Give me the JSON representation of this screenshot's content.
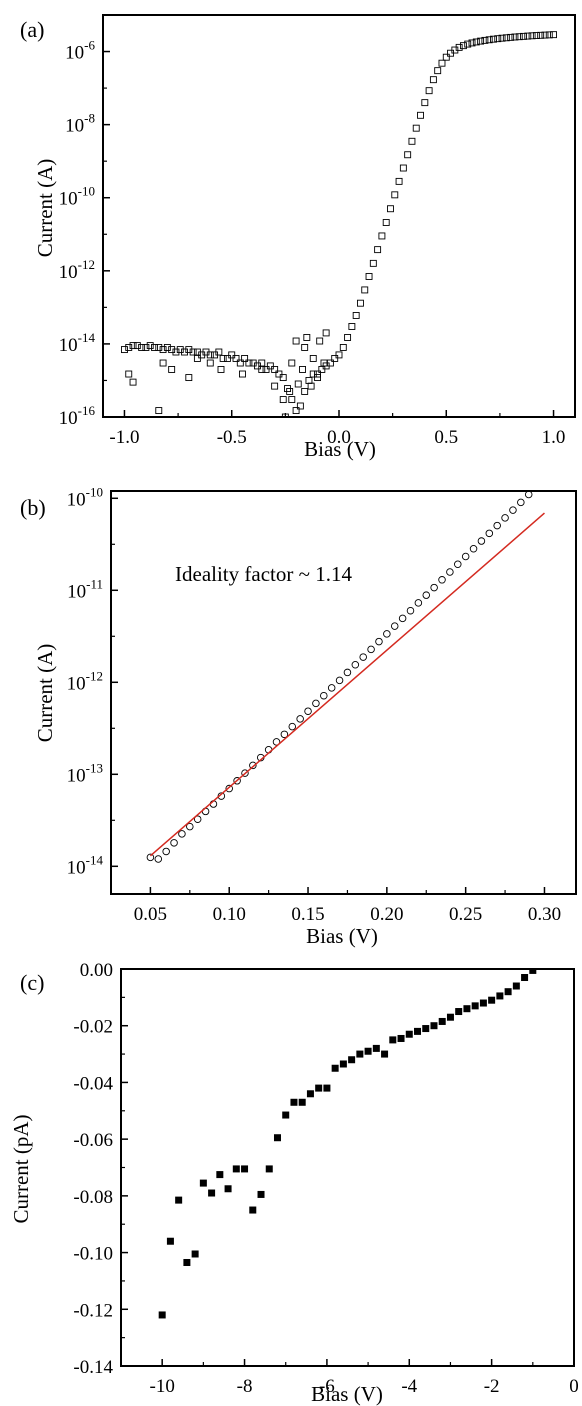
{
  "figure": {
    "colors": {
      "axis": "#000000",
      "marker": "#000000",
      "fit_line": "#d42a20",
      "background": "#ffffff"
    }
  },
  "chart_data": [
    {
      "panel": "(a)",
      "type": "scatter",
      "marker": "open-square",
      "xlabel": "Bias (V)",
      "ylabel": "Current (A)",
      "xlim": [
        -1.1,
        1.1
      ],
      "ylim": [
        1e-16,
        1e-05
      ],
      "yscale": "log",
      "xticks": [
        -1.0,
        -0.5,
        0.0,
        0.5,
        1.0
      ],
      "xtick_labels": [
        "-1.0",
        "-0.5",
        "0.0",
        "0.5",
        "1.0"
      ],
      "yticks": [
        1e-16,
        1e-14,
        1e-12,
        1e-10,
        1e-08,
        1e-06
      ],
      "ytick_labels": [
        {
          "base": "10",
          "exp": "-16"
        },
        {
          "base": "10",
          "exp": "-14"
        },
        {
          "base": "10",
          "exp": "-12"
        },
        {
          "base": "10",
          "exp": "-10"
        },
        {
          "base": "10",
          "exp": "-8"
        },
        {
          "base": "10",
          "exp": "-6"
        }
      ],
      "grid": false,
      "series": [
        {
          "x": [
            -1.0,
            -0.98,
            -0.96,
            -0.94,
            -0.92,
            -0.9,
            -0.88,
            -0.86,
            -0.84,
            -0.82,
            -0.8,
            -0.78,
            -0.76,
            -0.74,
            -0.72,
            -0.7,
            -0.68,
            -0.66,
            -0.64,
            -0.62,
            -0.6,
            -0.58,
            -0.56,
            -0.54,
            -0.52,
            -0.5,
            -0.48,
            -0.46,
            -0.44,
            -0.42,
            -0.4,
            -0.38,
            -0.36,
            -0.34,
            -0.32,
            -0.3,
            -0.28,
            -0.26,
            -0.24,
            -0.22,
            -0.2,
            -0.18,
            -0.16,
            -0.14,
            -0.12,
            -0.1,
            -0.08,
            -0.06,
            -0.04,
            -0.02,
            0.0,
            0.02,
            0.04,
            0.06,
            0.08,
            0.1,
            0.12,
            0.14,
            0.16,
            0.18,
            0.2,
            0.22,
            0.24,
            0.26,
            0.28,
            0.3,
            0.32,
            0.34,
            0.36,
            0.38,
            0.4,
            0.42,
            0.44,
            0.46,
            0.48,
            0.5,
            0.52,
            0.54,
            0.56,
            0.58,
            0.6,
            0.62,
            0.64,
            0.66,
            0.68,
            0.7,
            0.72,
            0.74,
            0.76,
            0.78,
            0.8,
            0.82,
            0.84,
            0.86,
            0.88,
            0.9,
            0.92,
            0.94,
            0.96,
            0.98,
            1.0,
            -0.98,
            -0.96,
            -0.84,
            -0.82,
            -0.78,
            -0.7,
            -0.66,
            -0.6,
            -0.55,
            -0.45,
            -0.36,
            -0.3,
            -0.26,
            -0.25,
            -0.23,
            -0.22,
            -0.2,
            -0.19,
            -0.17,
            -0.16,
            -0.15,
            -0.13,
            -0.12,
            -0.1,
            -0.09,
            -0.07,
            -0.06
          ],
          "y": [
            7e-15,
            8e-15,
            9e-15,
            9e-15,
            8e-15,
            8e-15,
            9e-15,
            8e-15,
            8e-15,
            7e-15,
            8e-15,
            7e-15,
            6e-15,
            7e-15,
            6e-15,
            7e-15,
            6e-15,
            6e-15,
            5e-15,
            6e-15,
            5e-15,
            5e-15,
            6e-15,
            4e-15,
            4e-15,
            5e-15,
            4e-15,
            3e-15,
            4e-15,
            3e-15,
            3e-15,
            2.5e-15,
            3e-15,
            2e-15,
            2.5e-15,
            2e-15,
            1.5e-15,
            1.2e-15,
            6e-16,
            3e-16,
            1.5e-16,
            2e-16,
            5e-16,
            1e-15,
            1.5e-15,
            1.2e-15,
            2e-15,
            2.5e-15,
            3e-15,
            4e-15,
            5e-15,
            8e-15,
            1.5e-14,
            3e-14,
            6e-14,
            1.3e-13,
            3e-13,
            7e-13,
            1.6e-12,
            3.8e-12,
            9e-12,
            2.1e-11,
            5e-11,
            1.2e-10,
            2.8e-10,
            6.5e-10,
            1.5e-09,
            3.5e-09,
            8e-09,
            1.8e-08,
            4e-08,
            8.5e-08,
            1.7e-07,
            3e-07,
            4.8e-07,
            7e-07,
            9e-07,
            1.1e-06,
            1.3e-06,
            1.45e-06,
            1.6e-06,
            1.72e-06,
            1.83e-06,
            1.93e-06,
            2.02e-06,
            2.1e-06,
            2.18e-06,
            2.25e-06,
            2.32e-06,
            2.38e-06,
            2.44e-06,
            2.5e-06,
            2.55e-06,
            2.6e-06,
            2.65e-06,
            2.7e-06,
            2.74e-06,
            2.78e-06,
            2.82e-06,
            2.86e-06,
            2.9e-06,
            1.5e-15,
            9e-16,
            1.5e-16,
            3e-15,
            2e-15,
            1.2e-15,
            4e-15,
            3e-15,
            2e-15,
            1.5e-15,
            2e-15,
            7e-16,
            3e-16,
            1e-16,
            5e-16,
            3e-15,
            1.2e-14,
            8e-16,
            2e-15,
            8e-15,
            1.5e-14,
            7e-16,
            4e-15,
            1.5e-15,
            1.2e-14,
            3e-15,
            2e-14
          ]
        }
      ]
    },
    {
      "panel": "(b)",
      "type": "scatter",
      "marker": "open-circle",
      "xlabel": "Bias (V)",
      "ylabel": "Current (A)",
      "xlim": [
        0.025,
        0.32
      ],
      "ylim": [
        5e-15,
        1.2e-10
      ],
      "yscale": "log",
      "xticks": [
        0.05,
        0.1,
        0.15,
        0.2,
        0.25,
        0.3
      ],
      "xtick_labels": [
        "0.05",
        "0.10",
        "0.15",
        "0.20",
        "0.25",
        "0.30"
      ],
      "yticks": [
        1e-14,
        1e-13,
        1e-12,
        1e-11,
        1e-10
      ],
      "ytick_labels": [
        {
          "base": "10",
          "exp": "-14"
        },
        {
          "base": "10",
          "exp": "-13"
        },
        {
          "base": "10",
          "exp": "-12"
        },
        {
          "base": "10",
          "exp": "-11"
        },
        {
          "base": "10",
          "exp": "-10"
        }
      ],
      "grid": false,
      "annotation": "Ideality factor ~ 1.14",
      "series": [
        {
          "x": [
            0.05,
            0.055,
            0.06,
            0.065,
            0.07,
            0.075,
            0.08,
            0.085,
            0.09,
            0.095,
            0.1,
            0.105,
            0.11,
            0.115,
            0.12,
            0.125,
            0.13,
            0.135,
            0.14,
            0.145,
            0.15,
            0.155,
            0.16,
            0.165,
            0.17,
            0.175,
            0.18,
            0.185,
            0.19,
            0.195,
            0.2,
            0.205,
            0.21,
            0.215,
            0.22,
            0.225,
            0.23,
            0.235,
            0.24,
            0.245,
            0.25,
            0.255,
            0.26,
            0.265,
            0.27,
            0.275,
            0.28,
            0.285,
            0.29,
            0.295,
            0.3
          ],
          "y": [
            1.25e-14,
            1.2e-14,
            1.45e-14,
            1.8e-14,
            2.25e-14,
            2.7e-14,
            3.25e-14,
            3.95e-14,
            4.75e-14,
            5.8e-14,
            7e-14,
            8.5e-14,
            1.03e-13,
            1.25e-13,
            1.52e-13,
            1.85e-13,
            2.25e-13,
            2.72e-13,
            3.3e-13,
            4e-13,
            4.85e-13,
            5.9e-13,
            7.15e-13,
            8.7e-13,
            1.05e-12,
            1.28e-12,
            1.55e-12,
            1.88e-12,
            2.28e-12,
            2.77e-12,
            3.36e-12,
            4.08e-12,
            4.95e-12,
            6e-12,
            7.3e-12,
            8.85e-12,
            1.07e-11,
            1.3e-11,
            1.58e-11,
            1.92e-11,
            2.33e-11,
            2.83e-11,
            3.43e-11,
            4.16e-11,
            5.05e-11,
            6.13e-11,
            7.44e-11,
            9.03e-11,
            1.1e-10,
            1.33e-10,
            1.61e-10
          ]
        }
      ],
      "fit": {
        "x": [
          0.05,
          0.3
        ],
        "y": [
          1.3e-14,
          6.9e-11
        ]
      }
    },
    {
      "panel": "(c)",
      "type": "scatter",
      "marker": "filled-square",
      "xlabel": "Bias (V)",
      "ylabel": "Current (pA)",
      "xlim": [
        -11,
        0
      ],
      "ylim": [
        -0.14,
        0.0
      ],
      "xticks": [
        -10,
        -8,
        -6,
        -4,
        -2,
        0
      ],
      "xtick_labels": [
        "-10",
        "-8",
        "-6",
        "-4",
        "-2",
        "0"
      ],
      "yticks": [
        -0.14,
        -0.12,
        -0.1,
        -0.08,
        -0.06,
        -0.04,
        -0.02,
        0.0
      ],
      "ytick_labels": [
        "-0.14",
        "-0.12",
        "-0.10",
        "-0.08",
        "-0.06",
        "-0.04",
        "-0.02",
        "0.00"
      ],
      "grid": false,
      "series": [
        {
          "x": [
            -10.0,
            -9.8,
            -9.6,
            -9.4,
            -9.2,
            -9.0,
            -8.8,
            -8.6,
            -8.4,
            -8.2,
            -8.0,
            -7.8,
            -7.6,
            -7.4,
            -7.2,
            -7.0,
            -6.8,
            -6.6,
            -6.4,
            -6.2,
            -6.0,
            -5.8,
            -5.6,
            -5.4,
            -5.2,
            -5.0,
            -4.8,
            -4.6,
            -4.4,
            -4.2,
            -4.0,
            -3.8,
            -3.6,
            -3.4,
            -3.2,
            -3.0,
            -2.8,
            -2.6,
            -2.4,
            -2.2,
            -2.0,
            -1.8,
            -1.6,
            -1.4,
            -1.2,
            -1.0
          ],
          "y": [
            -0.122,
            -0.096,
            -0.0815,
            -0.1035,
            -0.1005,
            -0.0755,
            -0.079,
            -0.0725,
            -0.0775,
            -0.0705,
            -0.0705,
            -0.085,
            -0.0795,
            -0.0705,
            -0.0595,
            -0.0515,
            -0.047,
            -0.047,
            -0.044,
            -0.042,
            -0.042,
            -0.035,
            -0.0335,
            -0.032,
            -0.03,
            -0.029,
            -0.028,
            -0.03,
            -0.025,
            -0.0245,
            -0.023,
            -0.022,
            -0.021,
            -0.02,
            -0.0185,
            -0.017,
            -0.015,
            -0.014,
            -0.013,
            -0.012,
            -0.011,
            -0.0095,
            -0.008,
            -0.006,
            -0.003,
            -0.0005
          ]
        }
      ]
    }
  ]
}
